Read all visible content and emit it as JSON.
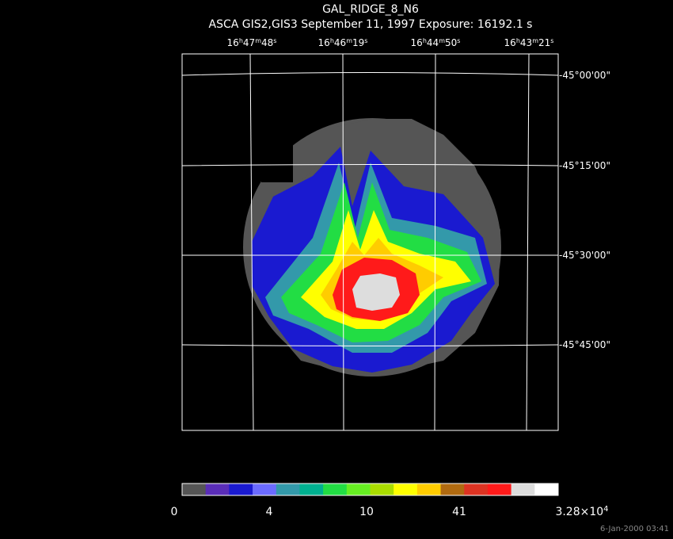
{
  "title": "GAL_RIDGE_8_N6",
  "subtitle": "ASCA GIS2,GIS3 September 11, 1997 Exposure: 16192.1 s",
  "ra_labels": [
    [
      "16",
      "h",
      "47",
      "m",
      "48",
      "s"
    ],
    [
      "16",
      "h",
      "46",
      "m",
      "19",
      "s"
    ],
    [
      "16",
      "h",
      "44",
      "m",
      "50",
      "s"
    ],
    [
      "16",
      "h",
      "43",
      "m",
      "21",
      "s"
    ]
  ],
  "dec_labels": [
    "-45°00'00\"",
    "-45°15'00\"",
    "-45°30'00\"",
    "-45°45'00\""
  ],
  "colorbar": {
    "colors": [
      "#555555",
      "#5a2db8",
      "#1a1ad0",
      "#6b6bff",
      "#3399aa",
      "#00b090",
      "#22dd44",
      "#66ee22",
      "#aadd00",
      "#ffff00",
      "#ffcc00",
      "#b06a10",
      "#dd3322",
      "#ff1a1a",
      "#dddddd",
      "#ffffff"
    ],
    "labels": [
      [
        "0"
      ],
      [
        "4"
      ],
      [
        "10"
      ],
      [
        "41"
      ],
      [
        "3.28×10",
        "4"
      ]
    ]
  },
  "footer": "6-Jan-2000 03:41"
}
